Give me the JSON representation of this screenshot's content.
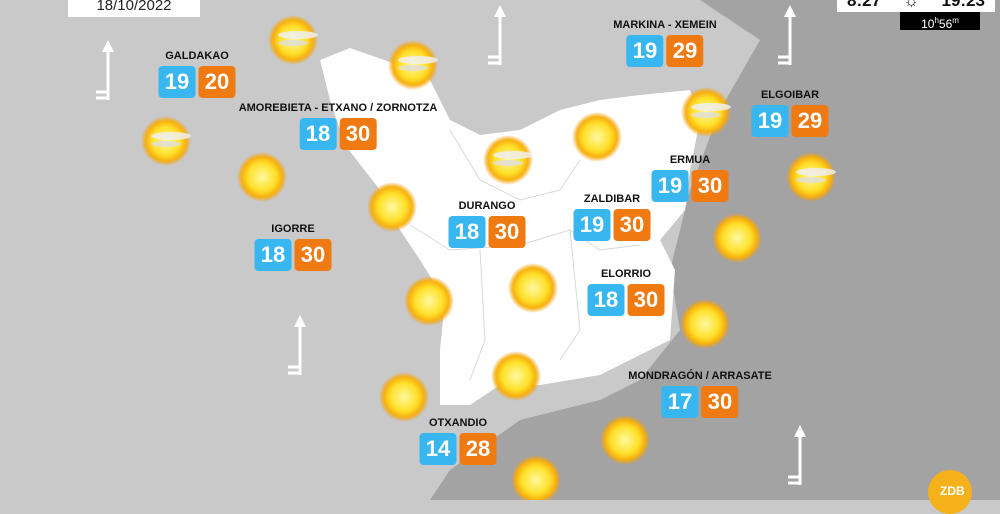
{
  "date": "18/10/2022",
  "sun": {
    "sunrise": "8:27",
    "sunset": "19:23",
    "day_hours": "10",
    "day_hours_unit": "h",
    "day_minutes": "56",
    "day_minutes_unit": "m",
    "icon": "sun-outline-icon"
  },
  "colors": {
    "min": "#38b6f0",
    "max": "#f07a12",
    "highlight_region": "#ffffff",
    "land": "#c9c9c9",
    "land_dark": "#a3a3a3"
  },
  "cities": [
    {
      "name": "GALDAKAO",
      "min": "19",
      "max": "20"
    },
    {
      "name": "AMOREBIETA - ETXANO / ZORNOTZA",
      "min": "18",
      "max": "30"
    },
    {
      "name": "IGORRE",
      "min": "18",
      "max": "30"
    },
    {
      "name": "DURANGO",
      "min": "18",
      "max": "30"
    },
    {
      "name": "MARKINA - XEMEIN",
      "min": "19",
      "max": "29"
    },
    {
      "name": "ELGOIBAR",
      "min": "19",
      "max": "29"
    },
    {
      "name": "ERMUA",
      "min": "19",
      "max": "30"
    },
    {
      "name": "ZALDIBAR",
      "min": "19",
      "max": "30"
    },
    {
      "name": "ELORRIO",
      "min": "18",
      "max": "30"
    },
    {
      "name": "MONDRAGÓN / ARRASATE",
      "min": "17",
      "max": "30"
    },
    {
      "name": "OTXANDIO",
      "min": "14",
      "max": "28"
    }
  ],
  "weather_icons": [
    "sun-with-clouds",
    "sun-with-clouds",
    "sun-with-clouds",
    "sunny",
    "sunny",
    "sun-with-clouds",
    "sunny",
    "sun-with-clouds",
    "sun-with-clouds",
    "sunny",
    "sunny",
    "sunny",
    "sunny",
    "sunny",
    "sunny",
    "sunny",
    "sunny"
  ],
  "wind_icons": [
    "wind-arrow-north",
    "wind-arrow-north",
    "wind-arrow-north",
    "wind-arrow-north",
    "wind-arrow-north"
  ],
  "logo": "ZDB"
}
